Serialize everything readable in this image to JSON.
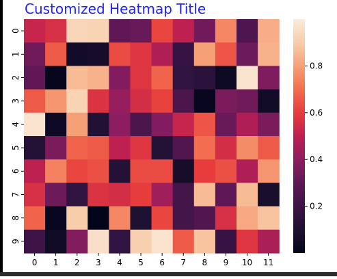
{
  "chart_data": {
    "type": "heatmap",
    "title": "Customized Heatmap Title",
    "title_color": "#1f1fff",
    "xlabel": "",
    "ylabel": "",
    "x_categories": [
      "0",
      "1",
      "2",
      "3",
      "4",
      "5",
      "6",
      "7",
      "8",
      "9",
      "10",
      "11"
    ],
    "y_categories": [
      "0",
      "1",
      "2",
      "3",
      "4",
      "5",
      "6",
      "7",
      "8",
      "9"
    ],
    "colormap": "rocket",
    "vmin": 0.0,
    "vmax": 1.0,
    "colorbar_ticks": [
      0.2,
      0.4,
      0.6,
      0.8
    ],
    "colorbar_tick_labels": [
      "0.2",
      "0.4",
      "0.6",
      "0.8"
    ],
    "values": [
      [
        0.52,
        0.56,
        0.93,
        0.92,
        0.3,
        0.32,
        0.62,
        0.5,
        0.34,
        0.75,
        0.25,
        0.83
      ],
      [
        0.34,
        0.66,
        0.06,
        0.07,
        0.63,
        0.58,
        0.47,
        0.18,
        0.8,
        0.65,
        0.33,
        0.84
      ],
      [
        0.3,
        0.01,
        0.86,
        0.84,
        0.38,
        0.58,
        0.68,
        0.16,
        0.14,
        0.04,
        0.97,
        0.37
      ],
      [
        0.66,
        0.78,
        0.92,
        0.57,
        0.42,
        0.55,
        0.61,
        0.24,
        0.02,
        0.36,
        0.34,
        0.06
      ],
      [
        0.97,
        0.04,
        0.8,
        0.11,
        0.4,
        0.24,
        0.38,
        0.52,
        0.65,
        0.32,
        0.47,
        0.36
      ],
      [
        0.12,
        0.36,
        0.68,
        0.66,
        0.5,
        0.58,
        0.12,
        0.26,
        0.7,
        0.55,
        0.76,
        0.66
      ],
      [
        0.5,
        0.74,
        0.62,
        0.64,
        0.12,
        0.63,
        0.63,
        0.07,
        0.6,
        0.64,
        0.47,
        0.78
      ],
      [
        0.56,
        0.33,
        0.16,
        0.57,
        0.55,
        0.6,
        0.44,
        0.22,
        0.86,
        0.3,
        0.86,
        0.08
      ],
      [
        0.68,
        0.02,
        0.9,
        0.0,
        0.75,
        0.1,
        0.62,
        0.22,
        0.26,
        0.56,
        0.82,
        0.88
      ],
      [
        0.2,
        0.05,
        0.38,
        0.96,
        0.16,
        0.91,
        0.97,
        0.66,
        0.88,
        0.18,
        0.58,
        0.46
      ]
    ],
    "grid": false,
    "legend": "colorbar-right"
  }
}
